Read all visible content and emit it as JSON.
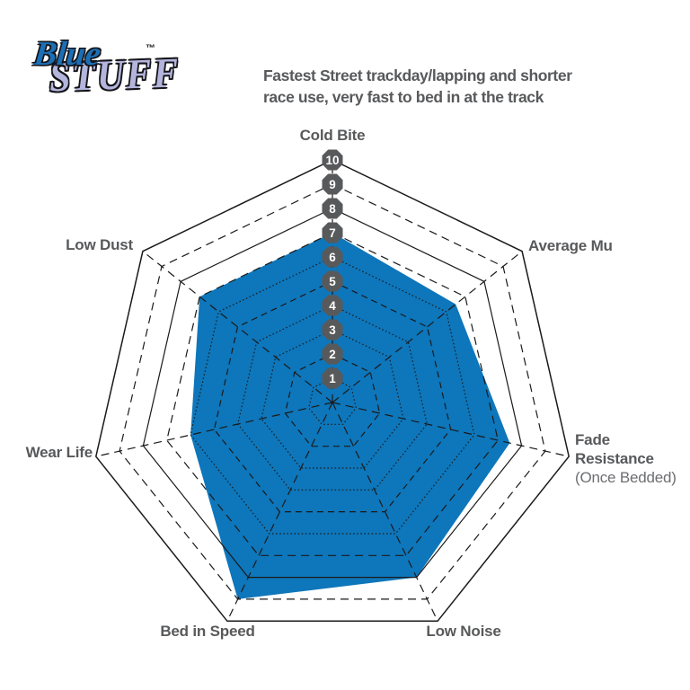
{
  "logo": {
    "brand_top": "Blue",
    "brand_bottom": "Stuff",
    "trademark": "™",
    "brand_top_color": "#1C6FB5",
    "brand_bottom_color": "#B4B5DC"
  },
  "header": {
    "description": "Fastest Street trackday/lapping and shorter\nrace use, very fast to bed in at the track"
  },
  "chart_data": {
    "type": "radar",
    "title": "Fastest Street trackday/lapping and shorter race use, very fast to bed in at the track",
    "axes": [
      {
        "label": "Cold Bite"
      },
      {
        "label": "Average Mu"
      },
      {
        "label": "Fade Resistance",
        "sublabel": "(Once Bedded)"
      },
      {
        "label": "Low Noise"
      },
      {
        "label": "Bed in Speed"
      },
      {
        "label": "Wear Life"
      },
      {
        "label": "Low Dust"
      }
    ],
    "series": [
      {
        "name": "Bluestuff",
        "values": [
          7,
          6.5,
          7.5,
          8,
          9,
          6,
          7
        ]
      }
    ],
    "scale": {
      "min": 0,
      "max": 10,
      "tick_labels": [
        "1",
        "2",
        "3",
        "4",
        "5",
        "6",
        "7",
        "8",
        "9",
        "10"
      ]
    },
    "legend": "none",
    "grid": "concentric heptagons, rings 1-10, dashed radial axes",
    "colors": {
      "fill": "#0E76BA",
      "grid_line": "#1a1a1a",
      "badge_fill": "#58595B",
      "badge_text": "#FFFFFF",
      "label_text": "#58595B"
    }
  }
}
